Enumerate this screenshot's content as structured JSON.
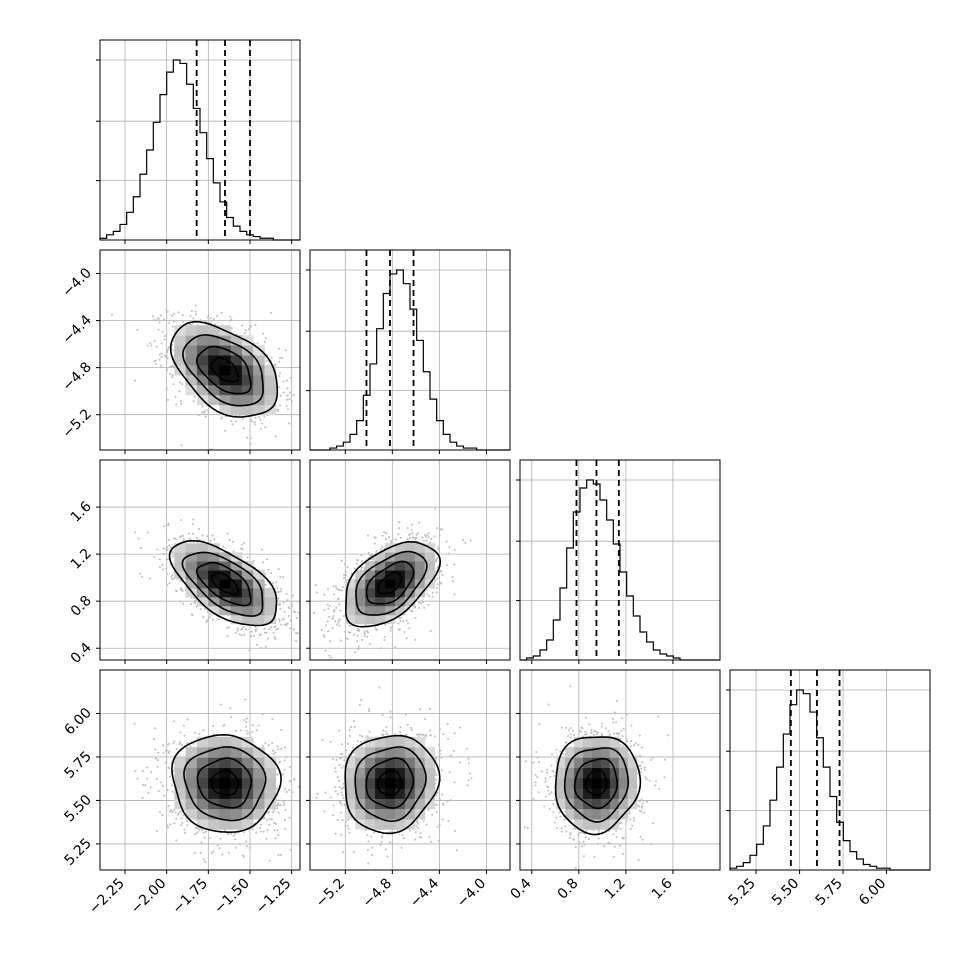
{
  "chart_data": {
    "type": "corner",
    "grid": true,
    "parameters": [
      {
        "range": [
          -2.4,
          -1.2
        ],
        "ticks": [
          -2.25,
          -2.0,
          -1.75,
          -1.5,
          -1.25
        ],
        "tick_labels": [
          "−2.25",
          "−2.00",
          "−1.75",
          "−1.50",
          "−1.25"
        ],
        "quantiles": [
          -1.82,
          -1.65,
          -1.5
        ],
        "histogram": {
          "bins": 30,
          "counts": [
            1,
            3,
            5,
            9,
            16,
            25,
            38,
            52,
            68,
            84,
            97,
            104,
            102,
            90,
            76,
            62,
            47,
            33,
            22,
            13,
            8,
            5,
            3,
            2,
            1,
            1,
            0,
            0,
            0,
            0
          ]
        }
      },
      {
        "range": [
          -5.5,
          -3.8
        ],
        "ticks": [
          -5.2,
          -4.8,
          -4.4,
          -4.0
        ],
        "tick_labels": [
          "−5.2",
          "−4.8",
          "−4.4",
          "−4.0"
        ],
        "quantiles": [
          -5.02,
          -4.82,
          -4.62
        ],
        "histogram": {
          "bins": 30,
          "counts": [
            0,
            0,
            0,
            1,
            2,
            4,
            8,
            15,
            28,
            44,
            62,
            80,
            90,
            92,
            85,
            72,
            56,
            40,
            26,
            15,
            8,
            4,
            2,
            1,
            1,
            0,
            0,
            0,
            0,
            0
          ]
        }
      },
      {
        "range": [
          0.3,
          2.0
        ],
        "ticks": [
          0.4,
          0.8,
          1.2,
          1.6
        ],
        "tick_labels": [
          "0.4",
          "0.8",
          "1.2",
          "1.6"
        ],
        "quantiles": [
          0.78,
          0.95,
          1.14
        ],
        "histogram": {
          "bins": 30,
          "counts": [
            0,
            1,
            2,
            5,
            10,
            20,
            36,
            56,
            74,
            86,
            90,
            88,
            80,
            70,
            58,
            44,
            32,
            22,
            14,
            9,
            5,
            3,
            2,
            1,
            0,
            0,
            0,
            0,
            0,
            0
          ]
        }
      },
      {
        "range": [
          5.1,
          6.25
        ],
        "ticks": [
          5.25,
          5.5,
          5.75,
          6.0
        ],
        "tick_labels": [
          "5.25",
          "5.50",
          "5.75",
          "6.00"
        ],
        "quantiles": [
          5.45,
          5.6,
          5.73
        ],
        "histogram": {
          "bins": 30,
          "counts": [
            1,
            2,
            4,
            8,
            14,
            24,
            38,
            56,
            74,
            90,
            98,
            96,
            86,
            72,
            56,
            40,
            26,
            16,
            10,
            6,
            3,
            2,
            1,
            1,
            0,
            0,
            0,
            0,
            0,
            0
          ]
        }
      }
    ],
    "correlations": [
      {
        "i": 1,
        "j": 0,
        "r": -0.45
      },
      {
        "i": 2,
        "j": 0,
        "r": -0.6
      },
      {
        "i": 2,
        "j": 1,
        "r": 0.5
      },
      {
        "i": 3,
        "j": 0,
        "r": -0.05
      },
      {
        "i": 3,
        "j": 1,
        "r": 0.08
      },
      {
        "i": 3,
        "j": 2,
        "r": 0.05
      }
    ],
    "contour_levels_sigma": [
      0.5,
      1.0,
      1.5,
      2.0
    ],
    "colors": {
      "line": "#000000",
      "points": "#bdbdbd",
      "grid": "#b0b0b0",
      "density_max": "#000000",
      "density_min": "#ffffff"
    }
  }
}
